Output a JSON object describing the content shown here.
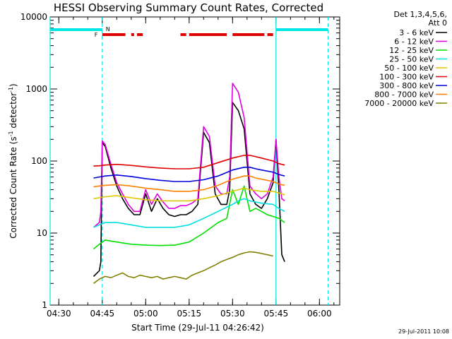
{
  "chart_data": {
    "type": "line",
    "title": "HESSI Observing Summary Count Rates, Corrected",
    "xlabel": "Start Time (29-Jul-11 04:26:42)",
    "ylabel_main": "Corrected Count Rate (s",
    "ylabel_sup1": "-1",
    "ylabel_mid": " detector",
    "ylabel_sup2": "-1",
    "ylabel_end": ")",
    "y_scale": "log",
    "ylim": [
      1,
      10000
    ],
    "xlim_minutes": [
      267,
      367
    ],
    "x_ticks": [
      {
        "minutes": 270,
        "label": "04:30"
      },
      {
        "minutes": 285,
        "label": "04:45"
      },
      {
        "minutes": 300,
        "label": "05:00"
      },
      {
        "minutes": 315,
        "label": "05:15"
      },
      {
        "minutes": 330,
        "label": "05:30"
      },
      {
        "minutes": 345,
        "label": "05:45"
      },
      {
        "minutes": 360,
        "label": "06:00"
      }
    ],
    "y_ticks": [
      {
        "value": 1,
        "label": "1"
      },
      {
        "value": 10,
        "label": "10"
      },
      {
        "value": 100,
        "label": "100"
      },
      {
        "value": 1000,
        "label": "1000"
      },
      {
        "value": 10000,
        "label": "10000"
      }
    ],
    "legend": {
      "header_line1": "Det 1,3,4,5,6,",
      "header_line2": "Att 0",
      "placement": "outside-right"
    },
    "annotations": {
      "flare_flag": "F",
      "night_flag": "N",
      "timestamp": "29-Jul-2011 10:08"
    },
    "markers": {
      "night_bar_color": "#00e5e5",
      "flare_bar_color": "#e00000",
      "night_periods": [
        [
          267,
          285
        ],
        [
          345,
          363
        ]
      ],
      "night_boundaries_solid": [
        267,
        345
      ],
      "night_boundaries_dashed": [
        285,
        363
      ],
      "flare_segments": [
        [
          285,
          293
        ],
        [
          295,
          296
        ],
        [
          297,
          299
        ],
        [
          312,
          314
        ],
        [
          315,
          328
        ],
        [
          330,
          341
        ],
        [
          342,
          344
        ]
      ]
    },
    "series": [
      {
        "name": "3 - 6 keV",
        "color": "#000000",
        "x": [
          282,
          284,
          284.5,
          285,
          286,
          288,
          290,
          292,
          294,
          296,
          298,
          300,
          302,
          304,
          306,
          308,
          310,
          312,
          314,
          316,
          318,
          320,
          322,
          324,
          326,
          328,
          329,
          330,
          332,
          334,
          336,
          338,
          340,
          342,
          344,
          345,
          346,
          347,
          348
        ],
        "values": [
          2.5,
          3,
          4,
          180,
          160,
          80,
          45,
          30,
          22,
          18,
          18,
          35,
          20,
          30,
          22,
          18,
          17,
          18,
          18,
          20,
          25,
          250,
          180,
          35,
          25,
          25,
          40,
          650,
          500,
          280,
          35,
          25,
          22,
          30,
          50,
          200,
          40,
          5,
          4
        ]
      },
      {
        "name": "6 - 12 keV",
        "color": "#e000e0",
        "x": [
          282,
          284,
          284.5,
          285,
          286,
          288,
          290,
          292,
          294,
          296,
          298,
          300,
          302,
          304,
          306,
          308,
          310,
          312,
          314,
          316,
          318,
          320,
          322,
          324,
          326,
          328,
          329,
          330,
          332,
          334,
          336,
          338,
          340,
          342,
          344,
          345,
          346,
          347,
          348
        ],
        "values": [
          12,
          14,
          20,
          190,
          170,
          90,
          50,
          35,
          25,
          20,
          20,
          40,
          25,
          35,
          27,
          22,
          22,
          24,
          24,
          26,
          30,
          300,
          220,
          45,
          35,
          35,
          60,
          1200,
          900,
          400,
          45,
          35,
          30,
          35,
          60,
          200,
          60,
          30,
          28
        ]
      },
      {
        "name": "12 - 25 keV",
        "color": "#00e000",
        "x": [
          282,
          284,
          286,
          290,
          295,
          300,
          305,
          310,
          315,
          320,
          325,
          328,
          330,
          332,
          334,
          336,
          338,
          340,
          342,
          344,
          346,
          348
        ],
        "values": [
          6,
          7,
          8,
          7.5,
          7,
          6.8,
          6.7,
          6.8,
          7.5,
          10,
          14,
          16,
          40,
          25,
          45,
          20,
          22,
          20,
          18,
          17,
          16,
          14
        ]
      },
      {
        "name": "25 - 50 keV",
        "color": "#00e0e0",
        "x": [
          282,
          284,
          286,
          290,
          295,
          300,
          305,
          310,
          315,
          320,
          325,
          330,
          332,
          334,
          336,
          340,
          344,
          346,
          348
        ],
        "values": [
          12,
          13,
          14,
          14,
          13,
          12,
          12,
          12,
          13,
          16,
          20,
          25,
          28,
          30,
          28,
          26,
          25,
          22,
          20
        ]
      },
      {
        "name": "50 - 100 keV",
        "color": "#e0c800",
        "x": [
          282,
          284,
          286,
          290,
          295,
          300,
          305,
          310,
          315,
          320,
          325,
          330,
          332,
          334,
          336,
          340,
          344,
          346,
          348
        ],
        "values": [
          30,
          31,
          32,
          33,
          31,
          29,
          28,
          28,
          28,
          30,
          33,
          38,
          40,
          42,
          40,
          38,
          38,
          36,
          34
        ]
      },
      {
        "name": "100 - 300 keV",
        "color": "#e00000",
        "x": [
          282,
          284,
          286,
          290,
          295,
          300,
          305,
          310,
          315,
          320,
          325,
          330,
          334,
          336,
          338,
          340,
          344,
          346,
          348
        ],
        "values": [
          85,
          86,
          88,
          90,
          87,
          83,
          80,
          78,
          78,
          82,
          95,
          110,
          120,
          120,
          115,
          110,
          100,
          92,
          88
        ]
      },
      {
        "name": "300 - 800 keV",
        "color": "#0000e0",
        "x": [
          282,
          284,
          286,
          290,
          295,
          300,
          305,
          310,
          315,
          320,
          325,
          330,
          334,
          336,
          338,
          340,
          344,
          346,
          348
        ],
        "values": [
          58,
          60,
          62,
          64,
          61,
          57,
          54,
          52,
          52,
          55,
          62,
          75,
          82,
          82,
          78,
          75,
          70,
          65,
          62
        ]
      },
      {
        "name": "800 - 7000 keV",
        "color": "#ff8000",
        "x": [
          282,
          284,
          286,
          290,
          295,
          300,
          305,
          310,
          315,
          320,
          325,
          330,
          334,
          336,
          338,
          340,
          344,
          346,
          348
        ],
        "values": [
          44,
          45,
          46,
          47,
          45,
          42,
          40,
          38,
          38,
          40,
          46,
          56,
          62,
          62,
          58,
          56,
          52,
          48,
          46
        ]
      },
      {
        "name": "7000 - 20000 keV",
        "color": "#808000",
        "x": [
          282,
          284,
          286,
          288,
          290,
          292,
          294,
          296,
          298,
          300,
          302,
          304,
          306,
          308,
          310,
          312,
          314,
          316,
          318,
          320,
          322,
          324,
          326,
          328,
          330,
          332,
          334,
          336,
          338,
          340,
          342,
          344
        ],
        "values": [
          2,
          2.3,
          2.5,
          2.4,
          2.6,
          2.8,
          2.5,
          2.4,
          2.6,
          2.5,
          2.4,
          2.5,
          2.3,
          2.4,
          2.5,
          2.4,
          2.3,
          2.6,
          2.8,
          3,
          3.3,
          3.6,
          4,
          4.3,
          4.6,
          5,
          5.3,
          5.5,
          5.4,
          5.2,
          5,
          4.8
        ]
      }
    ]
  }
}
